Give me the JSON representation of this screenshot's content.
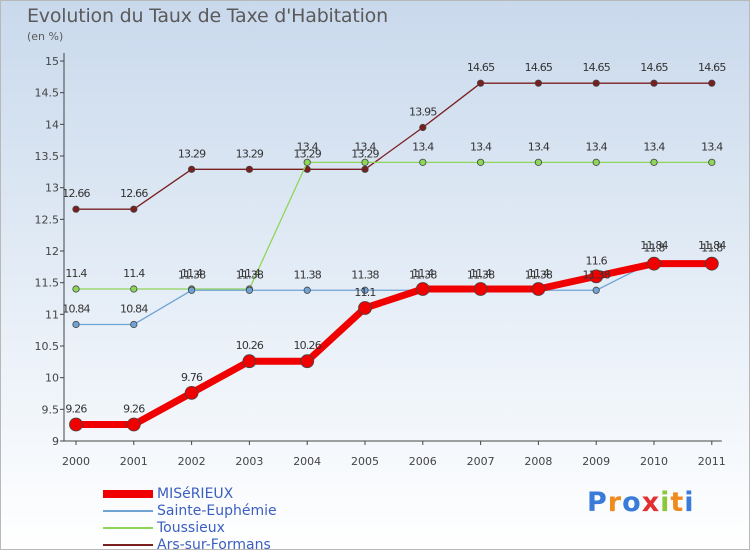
{
  "title": "Evolution du Taux de Taxe d'Habitation",
  "subtitle": "(en %)",
  "logo": {
    "text": "Proxiti",
    "colors": [
      "#3a7ad9",
      "#f08a1c",
      "#3a7ad9",
      "#e03030",
      "#8cc83c",
      "#f08a1c",
      "#3a7ad9"
    ]
  },
  "chart_data": {
    "type": "line",
    "title": "Evolution du Taux de Taxe d'Habitation",
    "ylabel": "(en %)",
    "xlabel": "",
    "x": [
      "2000",
      "2001",
      "2002",
      "2003",
      "2004",
      "2005",
      "2006",
      "2007",
      "2008",
      "2009",
      "2010",
      "2011"
    ],
    "ylim": [
      9,
      15
    ],
    "yticks": [
      "9",
      "9.5",
      "10",
      "10.5",
      "11",
      "11.5",
      "12",
      "12.5",
      "13",
      "13.5",
      "14",
      "14.5",
      "15"
    ],
    "grid": false,
    "legend_position": "bottom-left",
    "series": [
      {
        "name": "Ars-sur-Formans",
        "color": "#7a1f1f",
        "width": 1.3,
        "values": [
          12.66,
          12.66,
          13.29,
          13.29,
          13.29,
          13.29,
          13.95,
          14.65,
          14.65,
          14.65,
          14.65,
          14.65
        ],
        "labels": [
          "12.66",
          "12.66",
          "13.29",
          "13.29",
          "13.29",
          "13.29",
          "13.95",
          "14.65",
          "14.65",
          "14.65",
          "14.65",
          "14.65"
        ]
      },
      {
        "name": "Toussieux",
        "color": "#8ed65a",
        "width": 1.3,
        "values": [
          11.4,
          11.4,
          11.4,
          11.4,
          13.4,
          13.4,
          13.4,
          13.4,
          13.4,
          13.4,
          13.4,
          13.4
        ],
        "labels": [
          "11.4",
          "11.4",
          "11.4",
          "11.4",
          "13.4",
          "13.4",
          "13.4",
          "13.4",
          "13.4",
          "13.4",
          "13.4",
          "13.4"
        ]
      },
      {
        "name": "Sainte-Euphémie",
        "color": "#6fa3d4",
        "width": 1.3,
        "values": [
          10.84,
          10.84,
          11.38,
          11.38,
          11.38,
          11.38,
          11.38,
          11.38,
          11.38,
          11.38,
          11.84,
          11.84
        ],
        "labels": [
          "10.84",
          "10.84",
          "11.38",
          "11.38",
          "11.38",
          "11.38",
          "11.38",
          "11.38",
          "11.38",
          "11.38",
          "11.84",
          "11.84"
        ]
      },
      {
        "name": "MISéRIEUX",
        "color": "#f00000",
        "width": 7,
        "values": [
          9.26,
          9.26,
          9.76,
          10.26,
          10.26,
          11.1,
          11.4,
          11.4,
          11.4,
          11.6,
          11.8,
          11.8
        ],
        "labels": [
          "9.26",
          "9.26",
          "9.76",
          "10.26",
          "10.26",
          "11.1",
          "11.4",
          "11.4",
          "11.4",
          "11.6",
          "11.8",
          "11.8"
        ]
      }
    ]
  }
}
